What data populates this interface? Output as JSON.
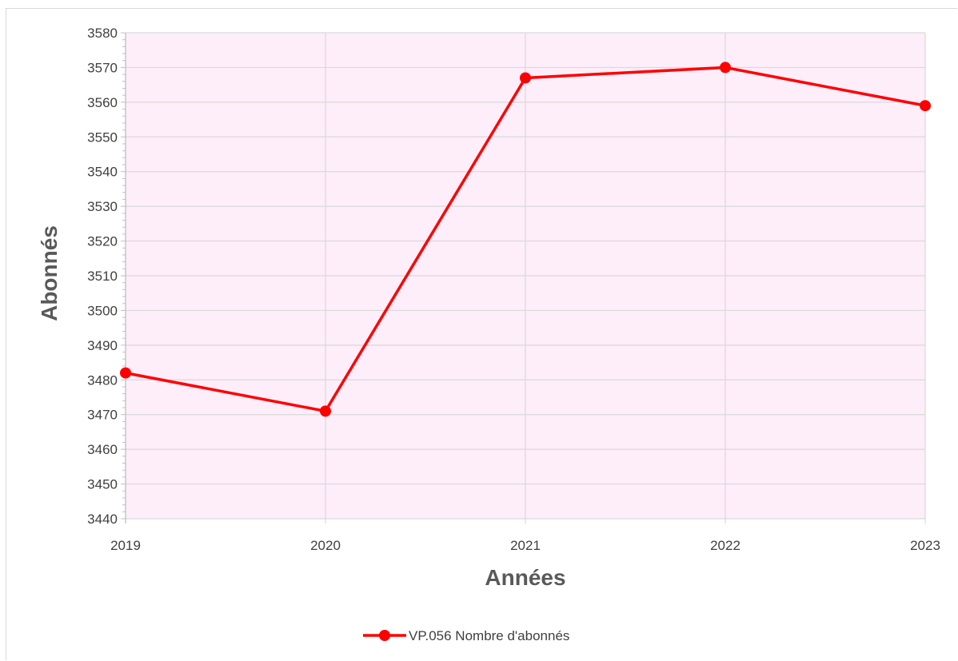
{
  "chart_data": {
    "type": "line",
    "x": [
      "2019",
      "2020",
      "2021",
      "2022",
      "2023"
    ],
    "series": [
      {
        "name": "VP.056 Nombre d'abonnés",
        "values": [
          3482,
          3471,
          3567,
          3570,
          3559
        ],
        "color": "#ff0000"
      }
    ],
    "xlabel": "Années",
    "ylabel": "Abonnés",
    "ylim": [
      3440,
      3580
    ],
    "yticks": [
      3440,
      3450,
      3460,
      3470,
      3480,
      3490,
      3500,
      3510,
      3520,
      3530,
      3540,
      3550,
      3560,
      3570,
      3580
    ],
    "grid": true,
    "legend_position": "bottom",
    "plot_background": "#fdeefa"
  }
}
